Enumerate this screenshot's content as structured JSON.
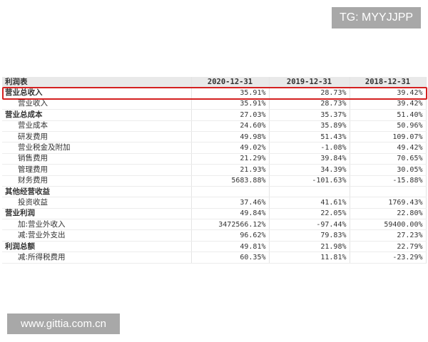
{
  "watermarks": {
    "top_right": "TG: MYYJJPP",
    "bottom_left": "www.gittia.com.cn"
  },
  "table": {
    "headers": [
      "利润表",
      "2020-12-31",
      "2019-12-31",
      "2018-12-31"
    ],
    "highlight_color": "#d42020",
    "rows": [
      {
        "label": "营业总收入",
        "bold": true,
        "highlighted": true,
        "values": [
          "35.91%",
          "28.73%",
          "39.42%"
        ]
      },
      {
        "label": "营业收入",
        "bold": false,
        "values": [
          "35.91%",
          "28.73%",
          "39.42%"
        ]
      },
      {
        "label": "营业总成本",
        "bold": true,
        "values": [
          "27.03%",
          "35.37%",
          "51.40%"
        ]
      },
      {
        "label": "营业成本",
        "bold": false,
        "values": [
          "24.60%",
          "35.89%",
          "50.96%"
        ]
      },
      {
        "label": "研发费用",
        "bold": false,
        "values": [
          "49.98%",
          "51.43%",
          "109.07%"
        ]
      },
      {
        "label": "营业税金及附加",
        "bold": false,
        "values": [
          "49.02%",
          "-1.08%",
          "49.42%"
        ]
      },
      {
        "label": "销售费用",
        "bold": false,
        "values": [
          "21.29%",
          "39.84%",
          "70.65%"
        ]
      },
      {
        "label": "管理费用",
        "bold": false,
        "values": [
          "21.93%",
          "34.39%",
          "30.05%"
        ]
      },
      {
        "label": "财务费用",
        "bold": false,
        "values": [
          "5683.88%",
          "-101.63%",
          "-15.88%"
        ]
      },
      {
        "label": "其他经营收益",
        "bold": true,
        "values": [
          "",
          "",
          ""
        ]
      },
      {
        "label": "投资收益",
        "bold": false,
        "values": [
          "37.46%",
          "41.61%",
          "1769.43%"
        ]
      },
      {
        "label": "营业利润",
        "bold": true,
        "values": [
          "49.84%",
          "22.05%",
          "22.80%"
        ]
      },
      {
        "label": "加:营业外收入",
        "bold": false,
        "values": [
          "3472566.12%",
          "-97.44%",
          "59400.00%"
        ]
      },
      {
        "label": "减:营业外支出",
        "bold": false,
        "values": [
          "96.62%",
          "79.83%",
          "27.23%"
        ]
      },
      {
        "label": "利润总额",
        "bold": true,
        "values": [
          "49.81%",
          "21.98%",
          "22.79%"
        ]
      },
      {
        "label": "减:所得税费用",
        "bold": false,
        "values": [
          "60.35%",
          "11.81%",
          "-23.29%"
        ]
      }
    ]
  }
}
